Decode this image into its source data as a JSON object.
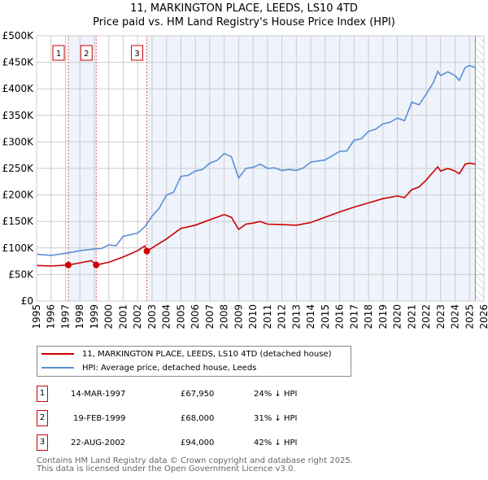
{
  "header": {
    "title": "11, MARKINGTON PLACE, LEEDS, LS10 4TD",
    "subtitle": "Price paid vs. HM Land Registry's House Price Index (HPI)"
  },
  "chart_data": {
    "type": "line",
    "title": "11, MARKINGTON PLACE, LEEDS, LS10 4TD",
    "subtitle": "Price paid vs. HM Land Registry's House Price Index (HPI)",
    "xlim": [
      1995,
      2026
    ],
    "ylim": [
      0,
      500000
    ],
    "x_ticks": [
      "1995",
      "1996",
      "1997",
      "1998",
      "1999",
      "2000",
      "2001",
      "2002",
      "2003",
      "2004",
      "2005",
      "2006",
      "2007",
      "2008",
      "2009",
      "2010",
      "2011",
      "2012",
      "2013",
      "2014",
      "2015",
      "2016",
      "2017",
      "2018",
      "2019",
      "2020",
      "2021",
      "2022",
      "2023",
      "2024",
      "2025",
      "2026"
    ],
    "y_ticks": [
      {
        "v": 0,
        "label": "£0"
      },
      {
        "v": 50000,
        "label": "£50K"
      },
      {
        "v": 100000,
        "label": "£100K"
      },
      {
        "v": 150000,
        "label": "£150K"
      },
      {
        "v": 200000,
        "label": "£200K"
      },
      {
        "v": 250000,
        "label": "£250K"
      },
      {
        "v": 300000,
        "label": "£300K"
      },
      {
        "v": 350000,
        "label": "£350K"
      },
      {
        "v": 400000,
        "label": "£400K"
      },
      {
        "v": 450000,
        "label": "£450K"
      },
      {
        "v": 500000,
        "label": "£500K"
      }
    ],
    "grid": true,
    "colors": {
      "property": "#cc0000",
      "hpi": "#5b8fd4",
      "shade": "#eef3fc"
    },
    "series": [
      {
        "name": "11, MARKINGTON PLACE, LEEDS, LS10 4TD (detached house)",
        "x": [
          1995,
          1996,
          1997.2,
          1998,
          1998.8,
          1999.13,
          2000,
          2001,
          2002,
          2002.5,
          2002.64,
          2003,
          2004,
          2005,
          2006,
          2007,
          2008,
          2008.5,
          2009,
          2009.5,
          2010,
          2010.5,
          2011,
          2012,
          2013,
          2014,
          2015,
          2016,
          2017,
          2018,
          2019,
          2020,
          2020.5,
          2021,
          2021.5,
          2022,
          2022.8,
          2023,
          2023.5,
          2024,
          2024.3,
          2024.7,
          2025,
          2025.4
        ],
        "y": [
          67000,
          66000,
          67950,
          72000,
          76000,
          68000,
          73000,
          83000,
          95000,
          104000,
          94000,
          100000,
          117000,
          137000,
          143000,
          153000,
          163000,
          158000,
          135000,
          145000,
          147000,
          150000,
          145000,
          144000,
          143000,
          148000,
          158000,
          168000,
          177000,
          185000,
          193000,
          198000,
          195000,
          210000,
          215000,
          228000,
          253000,
          245000,
          250000,
          245000,
          240000,
          258000,
          260000,
          258000
        ]
      },
      {
        "name": "HPI: Average price, detached house, Leeds",
        "x": [
          1995,
          1996,
          1997,
          1997.5,
          1998,
          1999,
          1999.5,
          2000,
          2000.5,
          2001,
          2002,
          2002.5,
          2003,
          2003.5,
          2004,
          2004.5,
          2005,
          2005.5,
          2006,
          2006.5,
          2007,
          2007.5,
          2008,
          2008.5,
          2009,
          2009.5,
          2010,
          2010.5,
          2011,
          2011.5,
          2012,
          2012.5,
          2013,
          2013.5,
          2014,
          2015,
          2016,
          2016.5,
          2017,
          2017.5,
          2018,
          2018.5,
          2019,
          2019.5,
          2020,
          2020.5,
          2021,
          2021.5,
          2022,
          2022.5,
          2022.8,
          2023,
          2023.5,
          2024,
          2024.3,
          2024.7,
          2025,
          2025.4
        ],
        "y": [
          88000,
          86000,
          90000,
          92000,
          95000,
          98000,
          99000,
          106000,
          104000,
          122000,
          128000,
          140000,
          160000,
          175000,
          200000,
          205000,
          235000,
          237000,
          245000,
          248000,
          260000,
          265000,
          278000,
          272000,
          232000,
          250000,
          252000,
          258000,
          250000,
          251000,
          246000,
          248000,
          246000,
          251000,
          262000,
          266000,
          282000,
          283000,
          303000,
          306000,
          320000,
          324000,
          334000,
          337000,
          345000,
          340000,
          375000,
          370000,
          390000,
          412000,
          433000,
          425000,
          432000,
          425000,
          416000,
          440000,
          444000,
          440000
        ]
      }
    ],
    "annotations": [
      {
        "label": "1",
        "x": 1997.2,
        "y": 67950
      },
      {
        "label": "2",
        "x": 1999.13,
        "y": 68000
      },
      {
        "label": "3",
        "x": 2002.64,
        "y": 94000
      }
    ],
    "forecast_hatch_from": 2025.4
  },
  "legend": {
    "items": [
      {
        "label": "11, MARKINGTON PLACE, LEEDS, LS10 4TD (detached house)",
        "color": "#cc0000"
      },
      {
        "label": "HPI: Average price, detached house, Leeds",
        "color": "#5b8fd4"
      }
    ],
    "placement": "bottom"
  },
  "sales": [
    {
      "num": "1",
      "date": "14-MAR-1997",
      "price": "£67,950",
      "hpi": "24% ↓ HPI"
    },
    {
      "num": "2",
      "date": "19-FEB-1999",
      "price": "£68,000",
      "hpi": "31% ↓ HPI"
    },
    {
      "num": "3",
      "date": "22-AUG-2002",
      "price": "£94,000",
      "hpi": "42% ↓ HPI"
    }
  ],
  "footer": {
    "line1": "Contains HM Land Registry data © Crown copyright and database right 2025.",
    "line2": "This data is licensed under the Open Government Licence v3.0."
  }
}
